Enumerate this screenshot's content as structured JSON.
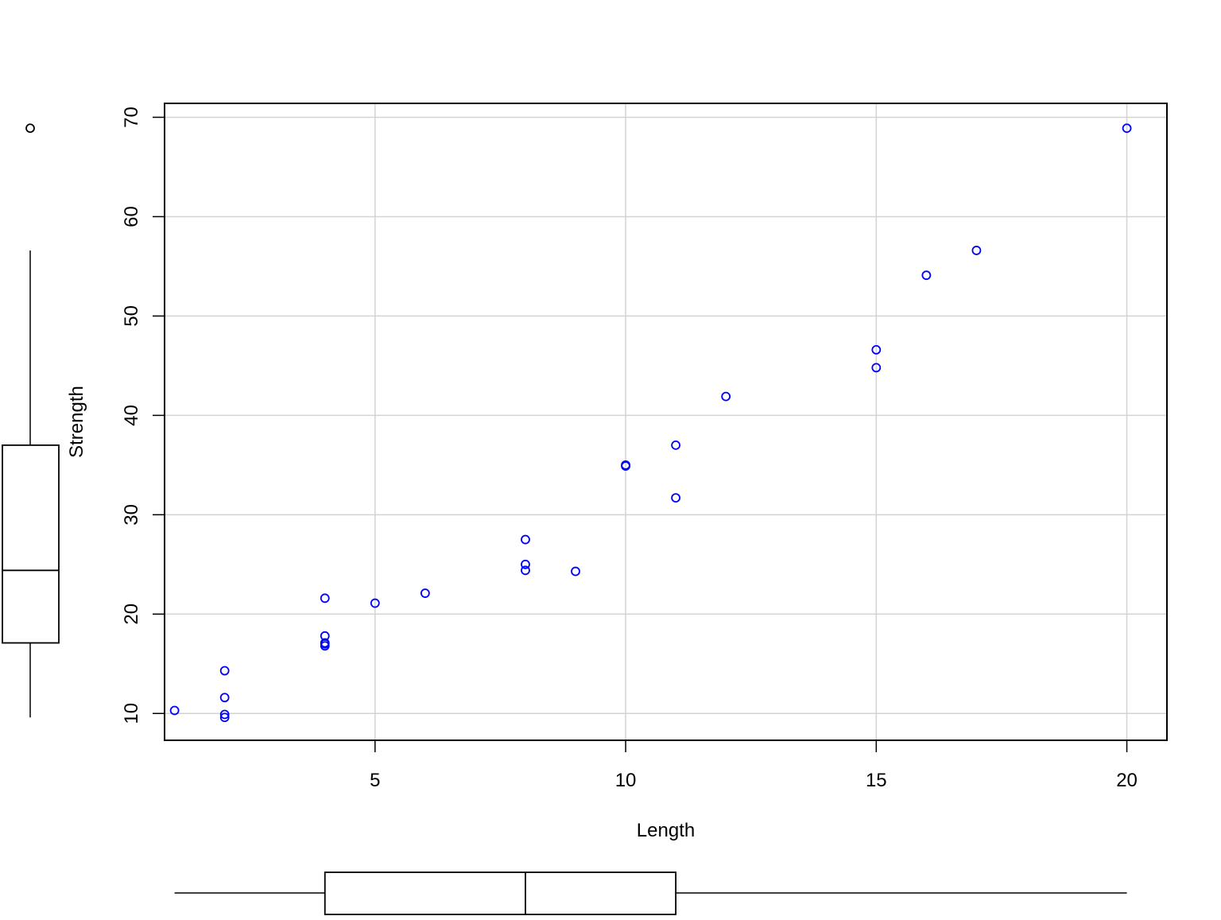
{
  "chart_data": {
    "type": "scatter",
    "title": "",
    "xlabel": "Length",
    "ylabel": "Strength",
    "xlim": [
      0.8,
      20.8
    ],
    "ylim": [
      7.3,
      71.4
    ],
    "x_ticks": [
      5,
      10,
      15,
      20
    ],
    "y_ticks": [
      10,
      20,
      30,
      40,
      50,
      60,
      70
    ],
    "grid": true,
    "colors": {
      "points": "#0000ff",
      "grid": "#d3d3d3",
      "axis": "#000000"
    },
    "marker": "open-circle",
    "series": [
      {
        "x": [
          1,
          2,
          2,
          2,
          2,
          4,
          4,
          4,
          4,
          4,
          5,
          6,
          8,
          8,
          8,
          9,
          10,
          10,
          11,
          11,
          12,
          15,
          15,
          16,
          17,
          20
        ],
        "y": [
          10.3,
          9.6,
          9.9,
          11.6,
          14.3,
          16.8,
          17.0,
          17.1,
          17.8,
          21.6,
          21.1,
          22.1,
          24.4,
          25.0,
          27.5,
          24.3,
          34.9,
          35.0,
          31.7,
          37.0,
          41.9,
          44.8,
          46.6,
          54.1,
          56.6,
          68.9
        ]
      }
    ],
    "marginal_boxplots": {
      "x": {
        "whisker_low": 1,
        "q1": 4,
        "median": 8,
        "q3": 11,
        "whisker_high": 20,
        "outliers": []
      },
      "y": {
        "whisker_low": 9.6,
        "q1": 17.1,
        "median": 24.4,
        "q3": 37.0,
        "whisker_high": 56.6,
        "outliers": [
          68.9
        ]
      }
    }
  }
}
